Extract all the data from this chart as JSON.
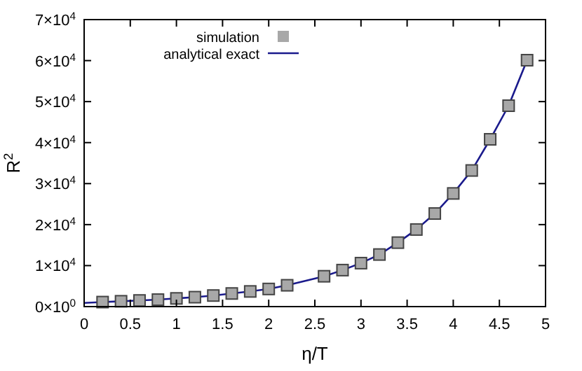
{
  "chart_data": {
    "type": "scatter",
    "xlabel": "η/T",
    "ylabel": "R$^{2}$",
    "xlim": [
      0,
      5
    ],
    "ylim": [
      0,
      70000
    ],
    "xticks": [
      0,
      0.5,
      1,
      1.5,
      2,
      2.5,
      3,
      3.5,
      4,
      4.5,
      5
    ],
    "yticks": [
      {
        "value": 0,
        "label": "0×10$^{0}$"
      },
      {
        "value": 10000,
        "label": "1×10$^{4}$"
      },
      {
        "value": 20000,
        "label": "2×10$^{4}$"
      },
      {
        "value": 30000,
        "label": "3×10$^{4}$"
      },
      {
        "value": 40000,
        "label": "4×10$^{4}$"
      },
      {
        "value": 50000,
        "label": "5×10$^{4}$"
      },
      {
        "value": 60000,
        "label": "6×10$^{4}$"
      },
      {
        "value": 70000,
        "label": "7×10$^{4}$"
      }
    ],
    "grid": false,
    "legend": "top left",
    "series": [
      {
        "name": "simulation",
        "type": "scatter",
        "marker": "square",
        "color": "#a8a8a8",
        "x": [
          0.2,
          0.4,
          0.6,
          0.8,
          1.0,
          1.2,
          1.4,
          1.6,
          1.8,
          2.0,
          2.2,
          2.6,
          2.8,
          3.0,
          3.2,
          3.4,
          3.6,
          3.8,
          4.0,
          4.2,
          4.4,
          4.6,
          4.8
        ],
        "values": [
          1100,
          1300,
          1500,
          1700,
          2000,
          2300,
          2700,
          3200,
          3700,
          4300,
          5200,
          7400,
          8900,
          10600,
          12700,
          15600,
          18800,
          22700,
          27600,
          33200,
          40800,
          49000,
          60100
        ]
      },
      {
        "name": "analytical exact",
        "type": "line",
        "marker": "none",
        "line_style": "solid",
        "color": "#1a1a8c",
        "x": [
          0,
          0.2,
          0.4,
          0.6,
          0.8,
          1.0,
          1.2,
          1.4,
          1.6,
          1.8,
          2.0,
          2.2,
          2.6,
          2.8,
          3.0,
          3.2,
          3.4,
          3.6,
          3.8,
          4.0,
          4.2,
          4.4,
          4.6,
          4.8
        ],
        "values": [
          900,
          1100,
          1300,
          1500,
          1700,
          2000,
          2300,
          2700,
          3200,
          3700,
          4300,
          5200,
          7400,
          8900,
          10600,
          12700,
          15600,
          18800,
          22700,
          27600,
          33200,
          40800,
          49000,
          60100
        ]
      }
    ]
  }
}
